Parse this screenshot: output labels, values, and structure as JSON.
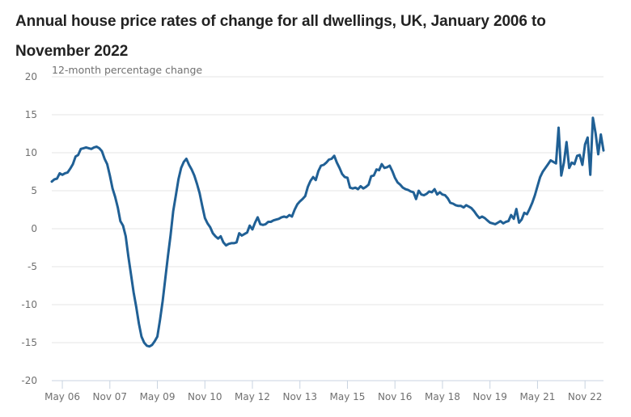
{
  "chart_data": {
    "type": "line",
    "title": "Annual house price rates of change for all dwellings, UK, January 2006 to November 2022",
    "ylabel": "12-month percentage change",
    "xlabel": "",
    "ylim": [
      -20,
      20
    ],
    "yticks": [
      20,
      15,
      10,
      5,
      0,
      -5,
      -10,
      -15,
      -20
    ],
    "x_range": [
      "Jan 2006",
      "Nov 2022"
    ],
    "xticks": [
      {
        "label": "May 06",
        "month_index": 4
      },
      {
        "label": "Nov 07",
        "month_index": 22
      },
      {
        "label": "May 09",
        "month_index": 40
      },
      {
        "label": "Nov 10",
        "month_index": 58
      },
      {
        "label": "May 12",
        "month_index": 76
      },
      {
        "label": "Nov 13",
        "month_index": 94
      },
      {
        "label": "May 15",
        "month_index": 112
      },
      {
        "label": "Nov 16",
        "month_index": 130
      },
      {
        "label": "May 18",
        "month_index": 148
      },
      {
        "label": "Nov 19",
        "month_index": 166
      },
      {
        "label": "May 21",
        "month_index": 184
      },
      {
        "label": "Nov 22",
        "month_index": 202
      }
    ],
    "grid": true,
    "legend": "none",
    "line_color": "#206095",
    "series": [
      {
        "name": "UK annual house price rate of change",
        "start": "Jan 2006",
        "frequency": "monthly",
        "values": [
          6.2,
          6.5,
          6.6,
          7.3,
          7.1,
          7.3,
          7.4,
          7.9,
          8.5,
          9.5,
          9.7,
          10.5,
          10.6,
          10.7,
          10.6,
          10.5,
          10.7,
          10.8,
          10.6,
          10.2,
          9.2,
          8.5,
          7.0,
          5.3,
          4.2,
          2.8,
          1.0,
          0.4,
          -1.0,
          -3.6,
          -6.0,
          -8.4,
          -10.3,
          -12.5,
          -14.2,
          -15.0,
          -15.4,
          -15.5,
          -15.3,
          -14.8,
          -14.2,
          -12.0,
          -9.5,
          -6.6,
          -3.6,
          -0.9,
          2.3,
          4.4,
          6.5,
          8.0,
          8.8,
          9.2,
          8.4,
          7.8,
          7.0,
          5.9,
          4.7,
          3.0,
          1.4,
          0.7,
          0.2,
          -0.6,
          -1.0,
          -1.3,
          -1.0,
          -1.8,
          -2.2,
          -2.0,
          -1.9,
          -1.9,
          -1.8,
          -0.6,
          -0.9,
          -0.7,
          -0.5,
          0.4,
          -0.1,
          0.8,
          1.5,
          0.6,
          0.5,
          0.6,
          0.9,
          0.9,
          1.1,
          1.2,
          1.3,
          1.5,
          1.6,
          1.5,
          1.8,
          1.6,
          2.5,
          3.2,
          3.6,
          3.9,
          4.3,
          5.5,
          6.3,
          6.8,
          6.4,
          7.6,
          8.3,
          8.4,
          8.7,
          9.1,
          9.2,
          9.6,
          8.7,
          8.0,
          7.2,
          6.8,
          6.7,
          5.4,
          5.3,
          5.4,
          5.2,
          5.6,
          5.3,
          5.5,
          5.8,
          6.9,
          7.0,
          7.8,
          7.7,
          8.5,
          8.0,
          8.1,
          8.3,
          7.6,
          6.7,
          6.1,
          5.8,
          5.4,
          5.2,
          5.1,
          4.9,
          4.8,
          3.9,
          5.0,
          4.5,
          4.4,
          4.6,
          4.9,
          4.8,
          5.2,
          4.5,
          4.8,
          4.5,
          4.4,
          4.0,
          3.4,
          3.3,
          3.1,
          3.0,
          3.0,
          2.8,
          3.1,
          2.9,
          2.7,
          2.3,
          1.8,
          1.4,
          1.6,
          1.4,
          1.1,
          0.8,
          0.7,
          0.6,
          0.8,
          1.0,
          0.7,
          0.9,
          1.0,
          1.8,
          1.3,
          2.6,
          0.8,
          1.2,
          2.1,
          1.9,
          2.6,
          3.4,
          4.4,
          5.6,
          6.8,
          7.5,
          8.0,
          8.5,
          9.0,
          8.8,
          8.6,
          13.3,
          7.0,
          8.7,
          11.4,
          8.0,
          8.7,
          8.5,
          9.6,
          9.7,
          8.4,
          11.1,
          12.0,
          7.1,
          14.6,
          12.6,
          9.8,
          12.4,
          10.3
        ]
      }
    ]
  }
}
